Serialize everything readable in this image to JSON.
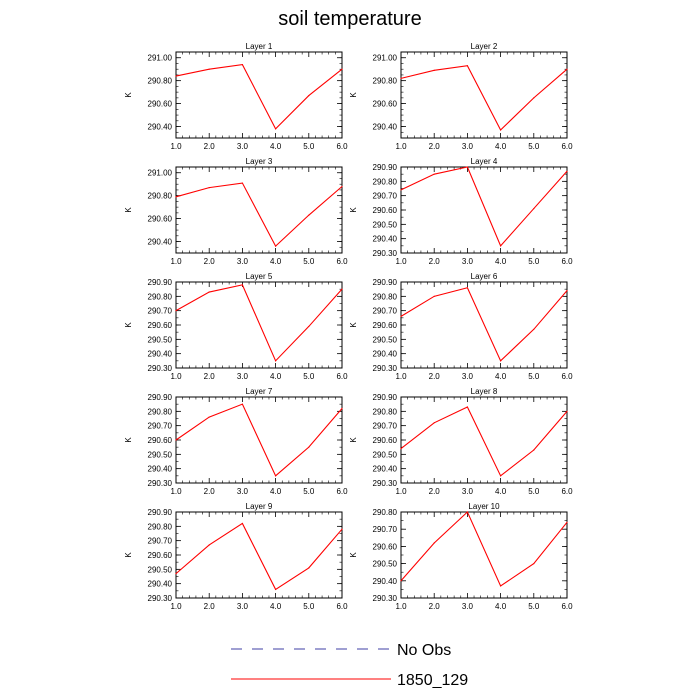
{
  "title": "soil temperature",
  "colors": {
    "model_line": "#ff0000",
    "obs_line": "#3f3fa6"
  },
  "legend": [
    {
      "label": "No Obs",
      "style": "dashed",
      "color": "#3f3fa6"
    },
    {
      "label": "1850_129",
      "style": "solid",
      "color": "#ff0000"
    }
  ],
  "chart_data": [
    {
      "type": "line",
      "title": "Layer 1",
      "ylabel": "K",
      "x": [
        1.0,
        2.0,
        3.0,
        4.0,
        5.0,
        6.0
      ],
      "xticks": [
        "1.0",
        "2.0",
        "3.0",
        "4.0",
        "5.0",
        "6.0"
      ],
      "xlim": [
        1.0,
        6.0
      ],
      "ylim": [
        290.3,
        291.05
      ],
      "yticks": [
        290.4,
        290.6,
        290.8,
        291.0
      ],
      "yticklabels": [
        "290.40",
        "290.60",
        "290.80",
        "291.00"
      ],
      "series": [
        {
          "name": "1850_129",
          "values": [
            290.84,
            290.9,
            290.94,
            290.38,
            290.67,
            290.9
          ]
        }
      ]
    },
    {
      "type": "line",
      "title": "Layer 2",
      "ylabel": "K",
      "x": [
        1.0,
        2.0,
        3.0,
        4.0,
        5.0,
        6.0
      ],
      "xticks": [
        "1.0",
        "2.0",
        "3.0",
        "4.0",
        "5.0",
        "6.0"
      ],
      "xlim": [
        1.0,
        6.0
      ],
      "ylim": [
        290.3,
        291.05
      ],
      "yticks": [
        290.4,
        290.6,
        290.8,
        291.0
      ],
      "yticklabels": [
        "290.40",
        "290.60",
        "290.80",
        "291.00"
      ],
      "series": [
        {
          "name": "1850_129",
          "values": [
            290.82,
            290.89,
            290.93,
            290.37,
            290.65,
            290.9
          ]
        }
      ]
    },
    {
      "type": "line",
      "title": "Layer 3",
      "ylabel": "K",
      "x": [
        1.0,
        2.0,
        3.0,
        4.0,
        5.0,
        6.0
      ],
      "xticks": [
        "1.0",
        "2.0",
        "3.0",
        "4.0",
        "5.0",
        "6.0"
      ],
      "xlim": [
        1.0,
        6.0
      ],
      "ylim": [
        290.3,
        291.05
      ],
      "yticks": [
        290.4,
        290.6,
        290.8,
        291.0
      ],
      "yticklabels": [
        "290.40",
        "290.60",
        "290.80",
        "291.00"
      ],
      "series": [
        {
          "name": "1850_129",
          "values": [
            290.79,
            290.87,
            290.91,
            290.36,
            290.63,
            290.88
          ]
        }
      ]
    },
    {
      "type": "line",
      "title": "Layer 4",
      "ylabel": "K",
      "x": [
        1.0,
        2.0,
        3.0,
        4.0,
        5.0,
        6.0
      ],
      "xticks": [
        "1.0",
        "2.0",
        "3.0",
        "4.0",
        "5.0",
        "6.0"
      ],
      "xlim": [
        1.0,
        6.0
      ],
      "ylim": [
        290.3,
        290.9
      ],
      "yticks": [
        290.3,
        290.4,
        290.5,
        290.6,
        290.7,
        290.8,
        290.9
      ],
      "yticklabels": [
        "290.30",
        "290.40",
        "290.50",
        "290.60",
        "290.70",
        "290.80",
        "290.90"
      ],
      "series": [
        {
          "name": "1850_129",
          "values": [
            290.74,
            290.85,
            290.9,
            290.35,
            290.61,
            290.87
          ]
        }
      ]
    },
    {
      "type": "line",
      "title": "Layer 5",
      "ylabel": "K",
      "x": [
        1.0,
        2.0,
        3.0,
        4.0,
        5.0,
        6.0
      ],
      "xticks": [
        "1.0",
        "2.0",
        "3.0",
        "4.0",
        "5.0",
        "6.0"
      ],
      "xlim": [
        1.0,
        6.0
      ],
      "ylim": [
        290.3,
        290.9
      ],
      "yticks": [
        290.3,
        290.4,
        290.5,
        290.6,
        290.7,
        290.8,
        290.9
      ],
      "yticklabels": [
        "290.30",
        "290.40",
        "290.50",
        "290.60",
        "290.70",
        "290.80",
        "290.90"
      ],
      "series": [
        {
          "name": "1850_129",
          "values": [
            290.7,
            290.83,
            290.88,
            290.35,
            290.59,
            290.85
          ]
        }
      ]
    },
    {
      "type": "line",
      "title": "Layer 6",
      "ylabel": "K",
      "x": [
        1.0,
        2.0,
        3.0,
        4.0,
        5.0,
        6.0
      ],
      "xticks": [
        "1.0",
        "2.0",
        "3.0",
        "4.0",
        "5.0",
        "6.0"
      ],
      "xlim": [
        1.0,
        6.0
      ],
      "ylim": [
        290.3,
        290.9
      ],
      "yticks": [
        290.3,
        290.4,
        290.5,
        290.6,
        290.7,
        290.8,
        290.9
      ],
      "yticklabels": [
        "290.30",
        "290.40",
        "290.50",
        "290.60",
        "290.70",
        "290.80",
        "290.90"
      ],
      "series": [
        {
          "name": "1850_129",
          "values": [
            290.66,
            290.8,
            290.86,
            290.35,
            290.57,
            290.84
          ]
        }
      ]
    },
    {
      "type": "line",
      "title": "Layer 7",
      "ylabel": "K",
      "x": [
        1.0,
        2.0,
        3.0,
        4.0,
        5.0,
        6.0
      ],
      "xticks": [
        "1.0",
        "2.0",
        "3.0",
        "4.0",
        "5.0",
        "6.0"
      ],
      "xlim": [
        1.0,
        6.0
      ],
      "ylim": [
        290.3,
        290.9
      ],
      "yticks": [
        290.3,
        290.4,
        290.5,
        290.6,
        290.7,
        290.8,
        290.9
      ],
      "yticklabels": [
        "290.30",
        "290.40",
        "290.50",
        "290.60",
        "290.70",
        "290.80",
        "290.90"
      ],
      "series": [
        {
          "name": "1850_129",
          "values": [
            290.6,
            290.76,
            290.85,
            290.35,
            290.55,
            290.82
          ]
        }
      ]
    },
    {
      "type": "line",
      "title": "Layer 8",
      "ylabel": "K",
      "x": [
        1.0,
        2.0,
        3.0,
        4.0,
        5.0,
        6.0
      ],
      "xticks": [
        "1.0",
        "2.0",
        "3.0",
        "4.0",
        "5.0",
        "6.0"
      ],
      "xlim": [
        1.0,
        6.0
      ],
      "ylim": [
        290.3,
        290.9
      ],
      "yticks": [
        290.3,
        290.4,
        290.5,
        290.6,
        290.7,
        290.8,
        290.9
      ],
      "yticklabels": [
        "290.30",
        "290.40",
        "290.50",
        "290.60",
        "290.70",
        "290.80",
        "290.90"
      ],
      "series": [
        {
          "name": "1850_129",
          "values": [
            290.54,
            290.72,
            290.83,
            290.35,
            290.53,
            290.8
          ]
        }
      ]
    },
    {
      "type": "line",
      "title": "Layer 9",
      "ylabel": "K",
      "x": [
        1.0,
        2.0,
        3.0,
        4.0,
        5.0,
        6.0
      ],
      "xticks": [
        "1.0",
        "2.0",
        "3.0",
        "4.0",
        "5.0",
        "6.0"
      ],
      "xlim": [
        1.0,
        6.0
      ],
      "ylim": [
        290.3,
        290.9
      ],
      "yticks": [
        290.3,
        290.4,
        290.5,
        290.6,
        290.7,
        290.8,
        290.9
      ],
      "yticklabels": [
        "290.30",
        "290.40",
        "290.50",
        "290.60",
        "290.70",
        "290.80",
        "290.90"
      ],
      "series": [
        {
          "name": "1850_129",
          "values": [
            290.47,
            290.67,
            290.82,
            290.36,
            290.51,
            290.78
          ]
        }
      ]
    },
    {
      "type": "line",
      "title": "Layer 10",
      "ylabel": "K",
      "x": [
        1.0,
        2.0,
        3.0,
        4.0,
        5.0,
        6.0
      ],
      "xticks": [
        "1.0",
        "2.0",
        "3.0",
        "4.0",
        "5.0",
        "6.0"
      ],
      "xlim": [
        1.0,
        6.0
      ],
      "ylim": [
        290.3,
        290.8
      ],
      "yticks": [
        290.3,
        290.4,
        290.5,
        290.6,
        290.7,
        290.8
      ],
      "yticklabels": [
        "290.30",
        "290.40",
        "290.50",
        "290.60",
        "290.70",
        "290.80"
      ],
      "series": [
        {
          "name": "1850_129",
          "values": [
            290.4,
            290.62,
            290.8,
            290.37,
            290.5,
            290.74
          ]
        }
      ]
    }
  ]
}
